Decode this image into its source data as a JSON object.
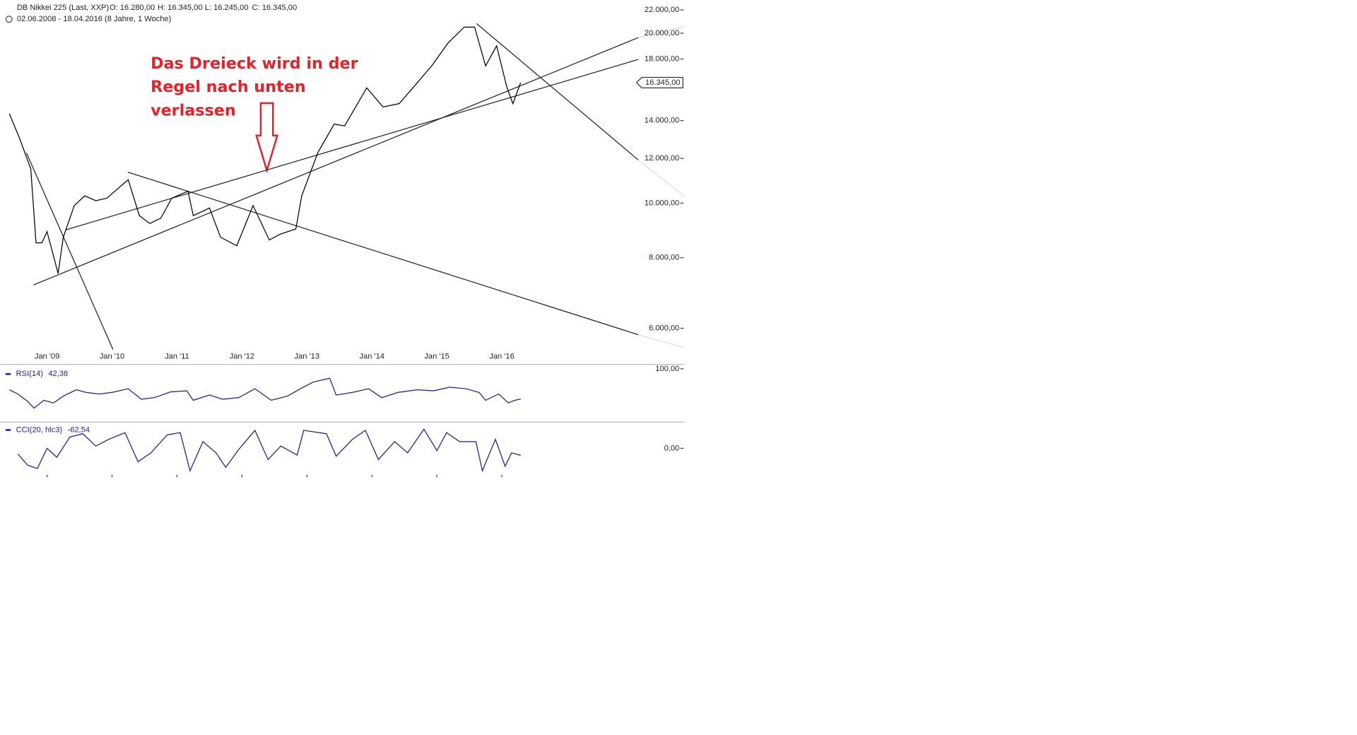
{
  "header": {
    "title": "DB Nikkei 225 (Last, XXP)",
    "quote": [
      "O: 16.280,00",
      "H: 16.345,00",
      "L: 16.245,00",
      "C: 16.345,00"
    ],
    "period": "02.06.2008 - 18.04.2016 (8 Jahre, 1 Woche)"
  },
  "annotation": [
    "Das Dreieck wird in der",
    "Regel nach unten",
    "verlassen"
  ],
  "chart_data": [
    {
      "type": "line",
      "log_scale": true,
      "color": "#000000",
      "x": [
        2008.42,
        2008.58,
        2008.75,
        2008.83,
        2008.92,
        2009.0,
        2009.17,
        2009.25,
        2009.42,
        2009.58,
        2009.75,
        2009.92,
        2010.25,
        2010.42,
        2010.58,
        2010.75,
        2010.92,
        2011.17,
        2011.25,
        2011.5,
        2011.67,
        2011.92,
        2012.17,
        2012.42,
        2012.58,
        2012.83,
        2012.92,
        2013.17,
        2013.42,
        2013.58,
        2013.92,
        2014.17,
        2014.42,
        2014.67,
        2014.92,
        2015.17,
        2015.42,
        2015.58,
        2015.75,
        2015.92,
        2016.08,
        2016.17,
        2016.29
      ],
      "values": [
        14400,
        13000,
        11500,
        8500,
        8500,
        8900,
        7500,
        8700,
        9900,
        10300,
        10100,
        10200,
        11000,
        9500,
        9200,
        9400,
        10200,
        10500,
        9500,
        9800,
        8700,
        8400,
        9900,
        8600,
        8800,
        9000,
        10300,
        12300,
        13800,
        13700,
        16000,
        14800,
        15000,
        16200,
        17500,
        19200,
        20500,
        20500,
        17500,
        19000,
        16000,
        15000,
        16345
      ],
      "xlim": [
        2008.28,
        2018.1
      ],
      "xticks": [
        {
          "value": 2009,
          "label": "Jan '09"
        },
        {
          "value": 2010,
          "label": "Jan '10"
        },
        {
          "value": 2011,
          "label": "Jan '11"
        },
        {
          "value": 2012,
          "label": "Jan '12"
        },
        {
          "value": 2013,
          "label": "Jan '13"
        },
        {
          "value": 2014,
          "label": "Jan '14"
        },
        {
          "value": 2015,
          "label": "Jan '15"
        },
        {
          "value": 2016,
          "label": "Jan '16"
        }
      ],
      "ylim": [
        5500,
        22900
      ],
      "yticks": [
        {
          "value": 6000,
          "label": "6.000,00"
        },
        {
          "value": 8000,
          "label": "8.000,00"
        },
        {
          "value": 10000,
          "label": "10.000,00"
        },
        {
          "value": 12000,
          "label": "12.000,00"
        },
        {
          "value": 14000,
          "label": "14.000,00"
        },
        {
          "value": 18000,
          "label": "18.000,00"
        },
        {
          "value": 20000,
          "label": "20.000,00"
        },
        {
          "value": 22000,
          "label": "22.000,00"
        }
      ],
      "price_tag": {
        "value": 16345,
        "label": "16.345,00"
      }
    },
    {
      "type": "line",
      "color": "#1a1aaa",
      "name": "RSI(14)",
      "readout": "42,38",
      "x": [
        2008.42,
        2008.55,
        2008.7,
        2008.8,
        2008.95,
        2009.1,
        2009.25,
        2009.45,
        2009.6,
        2009.8,
        2010.0,
        2010.25,
        2010.45,
        2010.65,
        2010.9,
        2011.15,
        2011.25,
        2011.5,
        2011.7,
        2011.95,
        2012.2,
        2012.45,
        2012.7,
        2012.9,
        2013.1,
        2013.35,
        2013.45,
        2013.7,
        2013.95,
        2014.15,
        2014.4,
        2014.7,
        2014.95,
        2015.2,
        2015.45,
        2015.65,
        2015.75,
        2015.95,
        2016.1,
        2016.2,
        2016.29
      ],
      "values": [
        60,
        52,
        38,
        25,
        40,
        35,
        48,
        60,
        55,
        52,
        55,
        62,
        42,
        45,
        56,
        58,
        40,
        50,
        42,
        45,
        62,
        40,
        48,
        62,
        75,
        82,
        50,
        55,
        62,
        45,
        55,
        60,
        58,
        65,
        62,
        55,
        40,
        52,
        35,
        40,
        42.38
      ],
      "ylim": [
        0,
        100
      ],
      "yticks": [
        {
          "value": 100,
          "label": "100,00"
        }
      ]
    },
    {
      "type": "line",
      "color": "#1a1aaa",
      "name": "CCI(20, hlc3)",
      "readout": "-62,54",
      "x": [
        2008.55,
        2008.7,
        2008.85,
        2009.0,
        2009.15,
        2009.35,
        2009.55,
        2009.75,
        2009.95,
        2010.2,
        2010.4,
        2010.6,
        2010.85,
        2011.05,
        2011.2,
        2011.4,
        2011.6,
        2011.75,
        2011.95,
        2012.2,
        2012.4,
        2012.6,
        2012.85,
        2012.95,
        2013.3,
        2013.45,
        2013.7,
        2013.9,
        2014.1,
        2014.35,
        2014.55,
        2014.8,
        2015.0,
        2015.15,
        2015.35,
        2015.6,
        2015.7,
        2015.9,
        2016.05,
        2016.15,
        2016.29
      ],
      "values": [
        -50,
        -150,
        -180,
        0,
        -80,
        100,
        130,
        20,
        80,
        140,
        -120,
        -40,
        120,
        140,
        -200,
        60,
        -40,
        -170,
        -10,
        160,
        -100,
        20,
        -60,
        160,
        130,
        -70,
        80,
        160,
        -100,
        60,
        -40,
        170,
        -20,
        140,
        60,
        60,
        -200,
        80,
        -160,
        -40,
        -62.54
      ],
      "ylim": [
        -265,
        210
      ],
      "yticks": [
        {
          "value": 0,
          "label": "0,00"
        }
      ]
    }
  ]
}
